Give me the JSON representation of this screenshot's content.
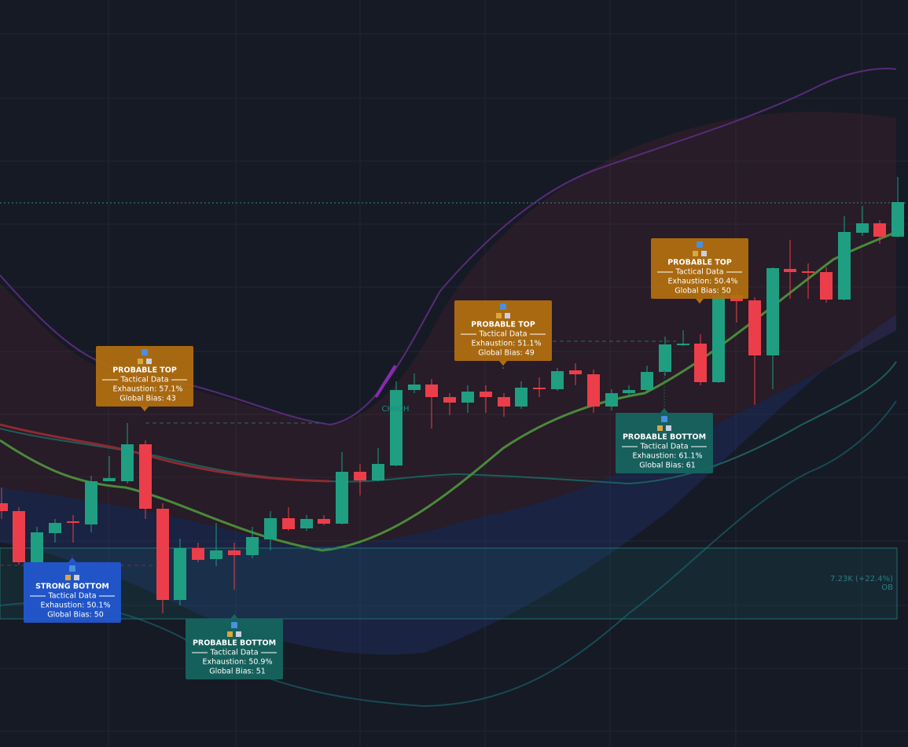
{
  "signals": [
    {
      "title": "PROBABLE TOP",
      "section": "Tactical Data",
      "exhaustion": "Exhaustion: 57.1%",
      "bias": "Global Bias: 43"
    },
    {
      "title": "STRONG BOTTOM",
      "section": "Tactical Data",
      "exhaustion": "Exhaustion: 50.1%",
      "bias": "Global Bias: 50"
    },
    {
      "title": "PROBABLE BOTTOM",
      "section": "Tactical Data",
      "exhaustion": "Exhaustion: 50.9%",
      "bias": "Global Bias: 51"
    },
    {
      "title": "PROBABLE TOP",
      "section": "Tactical Data",
      "exhaustion": "Exhaustion: 51.1%",
      "bias": "Global Bias: 49"
    },
    {
      "title": "PROBABLE TOP",
      "section": "Tactical Data",
      "exhaustion": "Exhaustion: 50.4%",
      "bias": "Global Bias: 50"
    },
    {
      "title": "PROBABLE BOTTOM",
      "section": "Tactical Data",
      "exhaustion": "Exhaustion: 61.1%",
      "bias": "Global Bias: 61"
    }
  ],
  "zone": {
    "label": "7.23K (+22.4%)",
    "tag": "OB"
  },
  "marker": "CHoCH"
}
